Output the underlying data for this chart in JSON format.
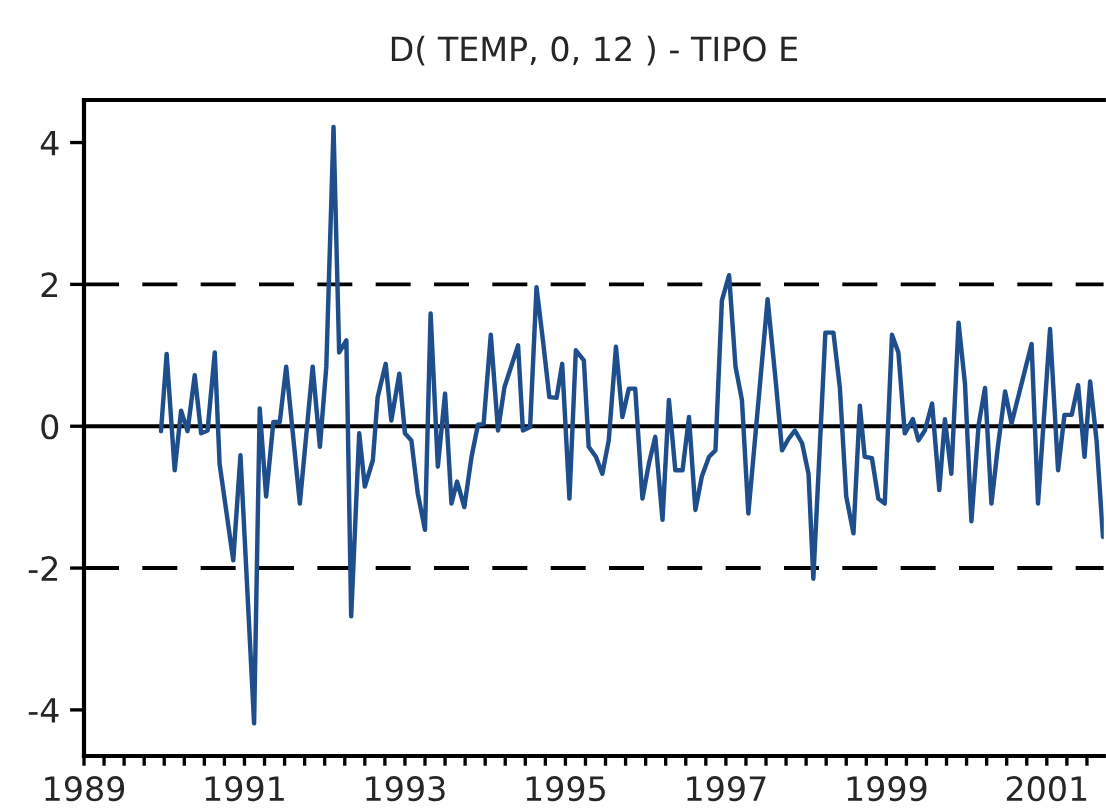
{
  "chart_data": {
    "type": "line",
    "title": "D( TEMP, 0, 12 ) - TIPO E",
    "x": [
      1989.96,
      1990.03,
      1990.13,
      1990.21,
      1990.29,
      1990.38,
      1990.46,
      1990.54,
      1990.63,
      1990.69,
      1990.86,
      1990.95,
      1991.12,
      1991.19,
      1991.27,
      1991.36,
      1991.44,
      1991.52,
      1991.69,
      1991.85,
      1991.94,
      1992.02,
      1992.11,
      1992.18,
      1992.27,
      1992.33,
      1992.43,
      1992.5,
      1992.6,
      1992.66,
      1992.76,
      1992.83,
      1992.93,
      1993.0,
      1993.08,
      1993.16,
      1993.25,
      1993.32,
      1993.41,
      1993.5,
      1993.58,
      1993.65,
      1993.74,
      1993.83,
      1993.91,
      1993.98,
      1994.07,
      1994.16,
      1994.24,
      1994.41,
      1994.47,
      1994.56,
      1994.64,
      1994.72,
      1994.8,
      1994.89,
      1994.96,
      1995.05,
      1995.13,
      1995.23,
      1995.29,
      1995.38,
      1995.46,
      1995.54,
      1995.63,
      1995.71,
      1995.79,
      1995.87,
      1995.96,
      1996.04,
      1996.12,
      1996.21,
      1996.29,
      1996.37,
      1996.46,
      1996.54,
      1996.62,
      1996.7,
      1996.79,
      1996.87,
      1996.95,
      1997.04,
      1997.12,
      1997.2,
      1997.28,
      1997.52,
      1997.62,
      1997.7,
      1997.78,
      1997.86,
      1997.95,
      1998.03,
      1998.09,
      1998.24,
      1998.34,
      1998.42,
      1998.5,
      1998.59,
      1998.67,
      1998.73,
      1998.82,
      1998.9,
      1998.98,
      1999.07,
      1999.15,
      1999.23,
      1999.33,
      1999.4,
      1999.48,
      1999.57,
      1999.66,
      1999.73,
      1999.81,
      1999.9,
      1999.98,
      2000.06,
      2000.15,
      2000.23,
      2000.31,
      2000.39,
      2000.48,
      2000.56,
      2000.81,
      2000.89,
      2001.04,
      2001.14,
      2001.22,
      2001.31,
      2001.39,
      2001.47,
      2001.54,
      2001.62,
      2001.7
    ],
    "series": [
      {
        "color": "#1f4e8c",
        "values": [
          -0.07,
          1.02,
          -0.62,
          0.22,
          -0.07,
          0.72,
          -0.1,
          -0.06,
          1.04,
          -0.53,
          -1.89,
          -0.41,
          -4.19,
          0.25,
          -0.99,
          0.06,
          0.06,
          0.84,
          -1.09,
          0.84,
          -0.29,
          0.84,
          4.22,
          1.04,
          1.21,
          -2.68,
          -0.1,
          -0.85,
          -0.48,
          0.41,
          0.88,
          0.08,
          0.74,
          -0.1,
          -0.2,
          -0.95,
          -1.46,
          1.59,
          -0.57,
          0.46,
          -1.09,
          -0.78,
          -1.14,
          -0.43,
          0.02,
          0.03,
          1.29,
          -0.06,
          0.55,
          1.14,
          -0.06,
          -0.01,
          1.96,
          1.21,
          0.41,
          0.4,
          0.88,
          -1.02,
          1.07,
          0.93,
          -0.29,
          -0.43,
          -0.67,
          -0.2,
          1.12,
          0.13,
          0.53,
          0.53,
          -1.02,
          -0.53,
          -0.15,
          -1.32,
          0.37,
          -0.62,
          -0.62,
          0.13,
          -1.18,
          -0.71,
          -0.43,
          -0.34,
          1.77,
          2.13,
          0.84,
          0.37,
          -1.23,
          1.79,
          0.65,
          -0.34,
          -0.18,
          -0.06,
          -0.24,
          -0.67,
          -2.15,
          1.32,
          1.32,
          0.55,
          -0.99,
          -1.51,
          0.29,
          -0.43,
          -0.45,
          -1.02,
          -1.09,
          1.29,
          1.04,
          -0.1,
          0.1,
          -0.2,
          -0.06,
          0.32,
          -0.9,
          0.1,
          -0.67,
          1.46,
          0.6,
          -1.34,
          0.02,
          0.54,
          -1.09,
          -0.29,
          0.49,
          0.04,
          1.16,
          -1.09,
          1.37,
          -0.62,
          0.16,
          0.16,
          0.58,
          -0.43,
          0.63,
          -0.2,
          -1.56
        ]
      }
    ],
    "xlim": [
      1989,
      2001.71
    ],
    "ylim": [
      -4.65,
      4.6
    ],
    "xticks": [
      {
        "value": 1989,
        "label": "1989"
      },
      {
        "value": 1989.25,
        "label": null
      },
      {
        "value": 1989.5,
        "label": null
      },
      {
        "value": 1989.75,
        "label": null
      },
      {
        "value": 1990,
        "label": null
      },
      {
        "value": 1990.25,
        "label": null
      },
      {
        "value": 1990.5,
        "label": null
      },
      {
        "value": 1990.75,
        "label": null
      },
      {
        "value": 1991,
        "label": "1991"
      },
      {
        "value": 1991.25,
        "label": null
      },
      {
        "value": 1991.5,
        "label": null
      },
      {
        "value": 1991.75,
        "label": null
      },
      {
        "value": 1992,
        "label": null
      },
      {
        "value": 1992.25,
        "label": null
      },
      {
        "value": 1992.5,
        "label": null
      },
      {
        "value": 1992.75,
        "label": null
      },
      {
        "value": 1993,
        "label": "1993"
      },
      {
        "value": 1993.25,
        "label": null
      },
      {
        "value": 1993.5,
        "label": null
      },
      {
        "value": 1993.75,
        "label": null
      },
      {
        "value": 1994,
        "label": null
      },
      {
        "value": 1994.25,
        "label": null
      },
      {
        "value": 1994.5,
        "label": null
      },
      {
        "value": 1994.75,
        "label": null
      },
      {
        "value": 1995,
        "label": "1995"
      },
      {
        "value": 1995.25,
        "label": null
      },
      {
        "value": 1995.5,
        "label": null
      },
      {
        "value": 1995.75,
        "label": null
      },
      {
        "value": 1996,
        "label": null
      },
      {
        "value": 1996.25,
        "label": null
      },
      {
        "value": 1996.5,
        "label": null
      },
      {
        "value": 1996.75,
        "label": null
      },
      {
        "value": 1997,
        "label": "1997"
      },
      {
        "value": 1997.25,
        "label": null
      },
      {
        "value": 1997.5,
        "label": null
      },
      {
        "value": 1997.75,
        "label": null
      },
      {
        "value": 1998,
        "label": null
      },
      {
        "value": 1998.25,
        "label": null
      },
      {
        "value": 1998.5,
        "label": null
      },
      {
        "value": 1998.75,
        "label": null
      },
      {
        "value": 1999,
        "label": "1999"
      },
      {
        "value": 1999.25,
        "label": null
      },
      {
        "value": 1999.5,
        "label": null
      },
      {
        "value": 1999.75,
        "label": null
      },
      {
        "value": 2000,
        "label": null
      },
      {
        "value": 2000.25,
        "label": null
      },
      {
        "value": 2000.5,
        "label": null
      },
      {
        "value": 2000.75,
        "label": null
      },
      {
        "value": 2001,
        "label": "2001"
      },
      {
        "value": 2001.25,
        "label": null
      },
      {
        "value": 2001.5,
        "label": null
      }
    ],
    "yticks": [
      -4,
      -2,
      0,
      2,
      4
    ],
    "ref_lines": [
      {
        "axis": "y",
        "value": 2,
        "color": "#000000",
        "line_style": "dashed"
      },
      {
        "axis": "y",
        "value": 0,
        "color": "#000000",
        "line_style": "solid"
      },
      {
        "axis": "y",
        "value": -2,
        "color": "#000000",
        "line_style": "dashed"
      }
    ],
    "grid": false,
    "marker": "none",
    "line_style": "solid"
  }
}
